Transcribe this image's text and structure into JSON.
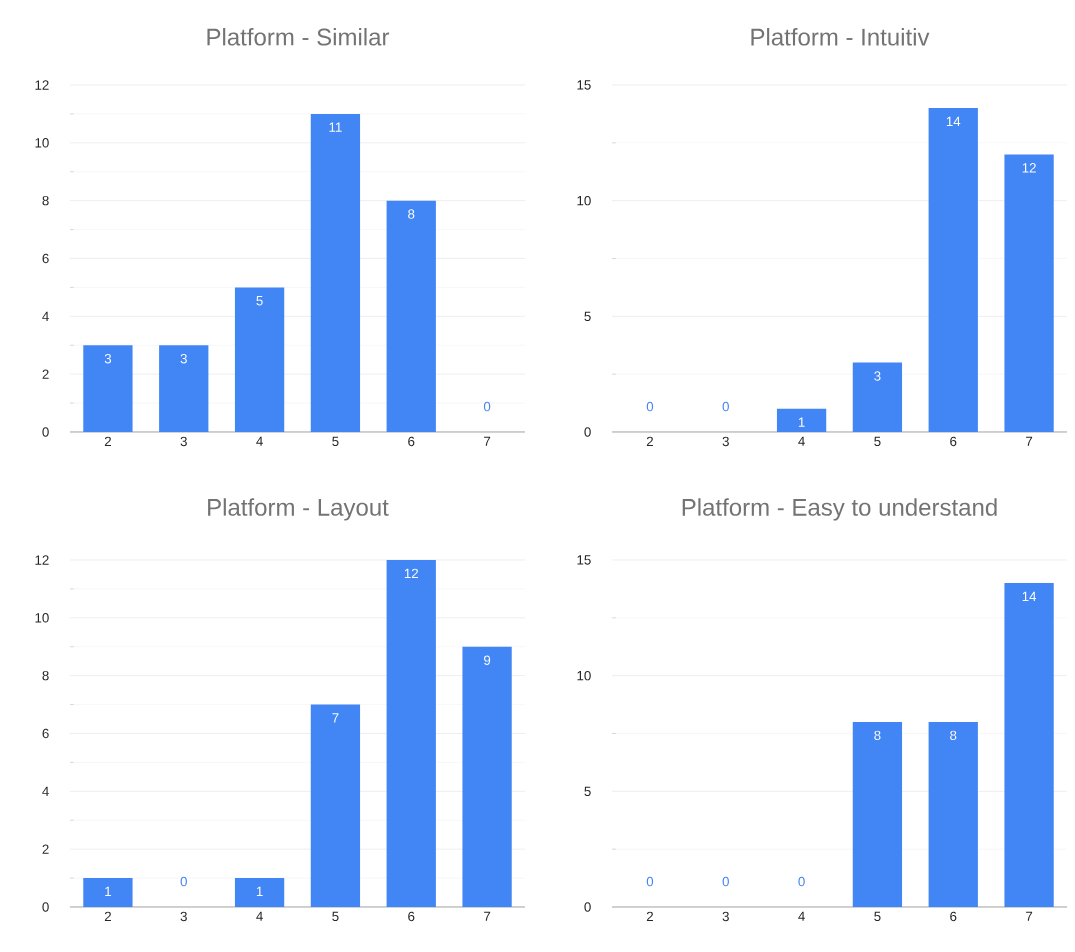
{
  "chart_data": [
    {
      "type": "bar",
      "title": "Platform - Similar",
      "categories": [
        "2",
        "3",
        "4",
        "5",
        "6",
        "7"
      ],
      "values": [
        3,
        3,
        5,
        11,
        8,
        0
      ],
      "color": "#4285f4",
      "ylim": [
        0,
        12
      ],
      "yticks": [
        0,
        2,
        4,
        6,
        8,
        10,
        12
      ],
      "grid": "y",
      "data_labels": true
    },
    {
      "type": "bar",
      "title": "Platform - Intuitiv",
      "categories": [
        "2",
        "3",
        "4",
        "5",
        "6",
        "7"
      ],
      "values": [
        0,
        0,
        1,
        3,
        14,
        12
      ],
      "color": "#4285f4",
      "ylim": [
        0,
        15
      ],
      "yticks": [
        0,
        5,
        10,
        15
      ],
      "grid": "y",
      "data_labels": true
    },
    {
      "type": "bar",
      "title": "Platform - Layout",
      "categories": [
        "2",
        "3",
        "4",
        "5",
        "6",
        "7"
      ],
      "values": [
        1,
        0,
        1,
        7,
        12,
        9
      ],
      "color": "#4285f4",
      "ylim": [
        0,
        12
      ],
      "yticks": [
        0,
        2,
        4,
        6,
        8,
        10,
        12
      ],
      "grid": "y",
      "data_labels": true
    },
    {
      "type": "bar",
      "title": "Platform - Easy to understand",
      "categories": [
        "2",
        "3",
        "4",
        "5",
        "6",
        "7"
      ],
      "values": [
        0,
        0,
        0,
        8,
        8,
        14
      ],
      "color": "#4285f4",
      "ylim": [
        0,
        15
      ],
      "yticks": [
        0,
        5,
        10,
        15
      ],
      "grid": "y",
      "data_labels": true
    }
  ]
}
